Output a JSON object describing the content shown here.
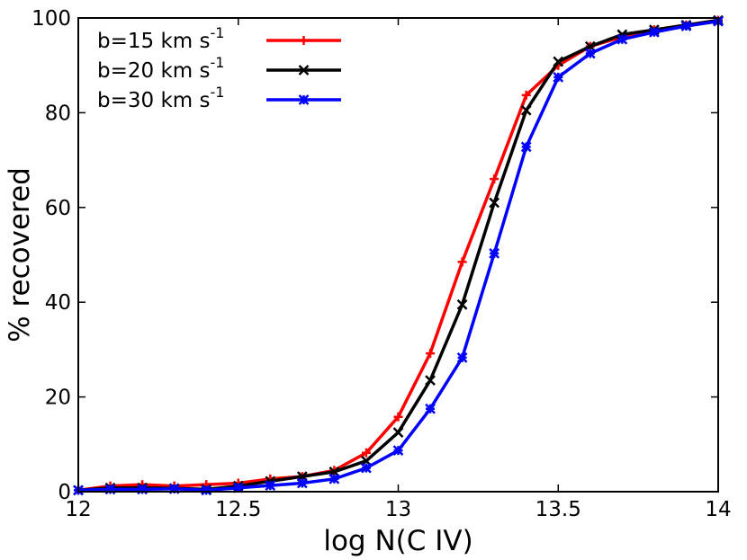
{
  "chart_data": {
    "type": "line",
    "xlabel": "log N(C IV)",
    "ylabel": "% recovered",
    "xlim": [
      12,
      14
    ],
    "ylim": [
      0,
      100
    ],
    "xticks": [
      12,
      12.5,
      13,
      13.5,
      14
    ],
    "yticks": [
      0,
      20,
      40,
      60,
      80,
      100
    ],
    "xtick_labels": [
      "12",
      "12.5",
      "13",
      "13.5",
      "14"
    ],
    "ytick_labels": [
      "0",
      "20",
      "40",
      "60",
      "80",
      "100"
    ],
    "grid": false,
    "legend_position": "top-left",
    "x": [
      12.0,
      12.1,
      12.2,
      12.3,
      12.4,
      12.5,
      12.6,
      12.7,
      12.8,
      12.9,
      13.0,
      13.1,
      13.2,
      13.3,
      13.4,
      13.5,
      13.6,
      13.7,
      13.8,
      13.9,
      14.0
    ],
    "series": [
      {
        "name": "b=15 km s",
        "name_superscript": "-1",
        "color": "#ff0000",
        "marker": "plus",
        "values": [
          0.3,
          1.2,
          1.5,
          1.2,
          1.5,
          1.8,
          2.7,
          3.2,
          4.5,
          8.2,
          15.8,
          29.2,
          48.5,
          66.0,
          83.7,
          90.0,
          94.0,
          96.0,
          97.5,
          98.5,
          99.5
        ]
      },
      {
        "name": "b=20 km s",
        "name_superscript": "-1",
        "color": "#000000",
        "marker": "x",
        "values": [
          0.3,
          0.8,
          0.8,
          0.7,
          0.5,
          1.2,
          2.2,
          3.2,
          4.2,
          6.5,
          12.5,
          23.5,
          39.5,
          61.0,
          80.5,
          90.8,
          94.0,
          96.5,
          97.5,
          98.5,
          99.5
        ]
      },
      {
        "name": "b=30 km s",
        "name_superscript": "-1",
        "color": "#0000ff",
        "marker": "star",
        "values": [
          0.3,
          0.5,
          0.5,
          0.6,
          0.3,
          0.8,
          1.3,
          1.8,
          2.7,
          5.0,
          8.7,
          17.5,
          28.3,
          50.3,
          72.8,
          87.5,
          92.5,
          95.5,
          97.0,
          98.3,
          99.3
        ]
      }
    ]
  }
}
